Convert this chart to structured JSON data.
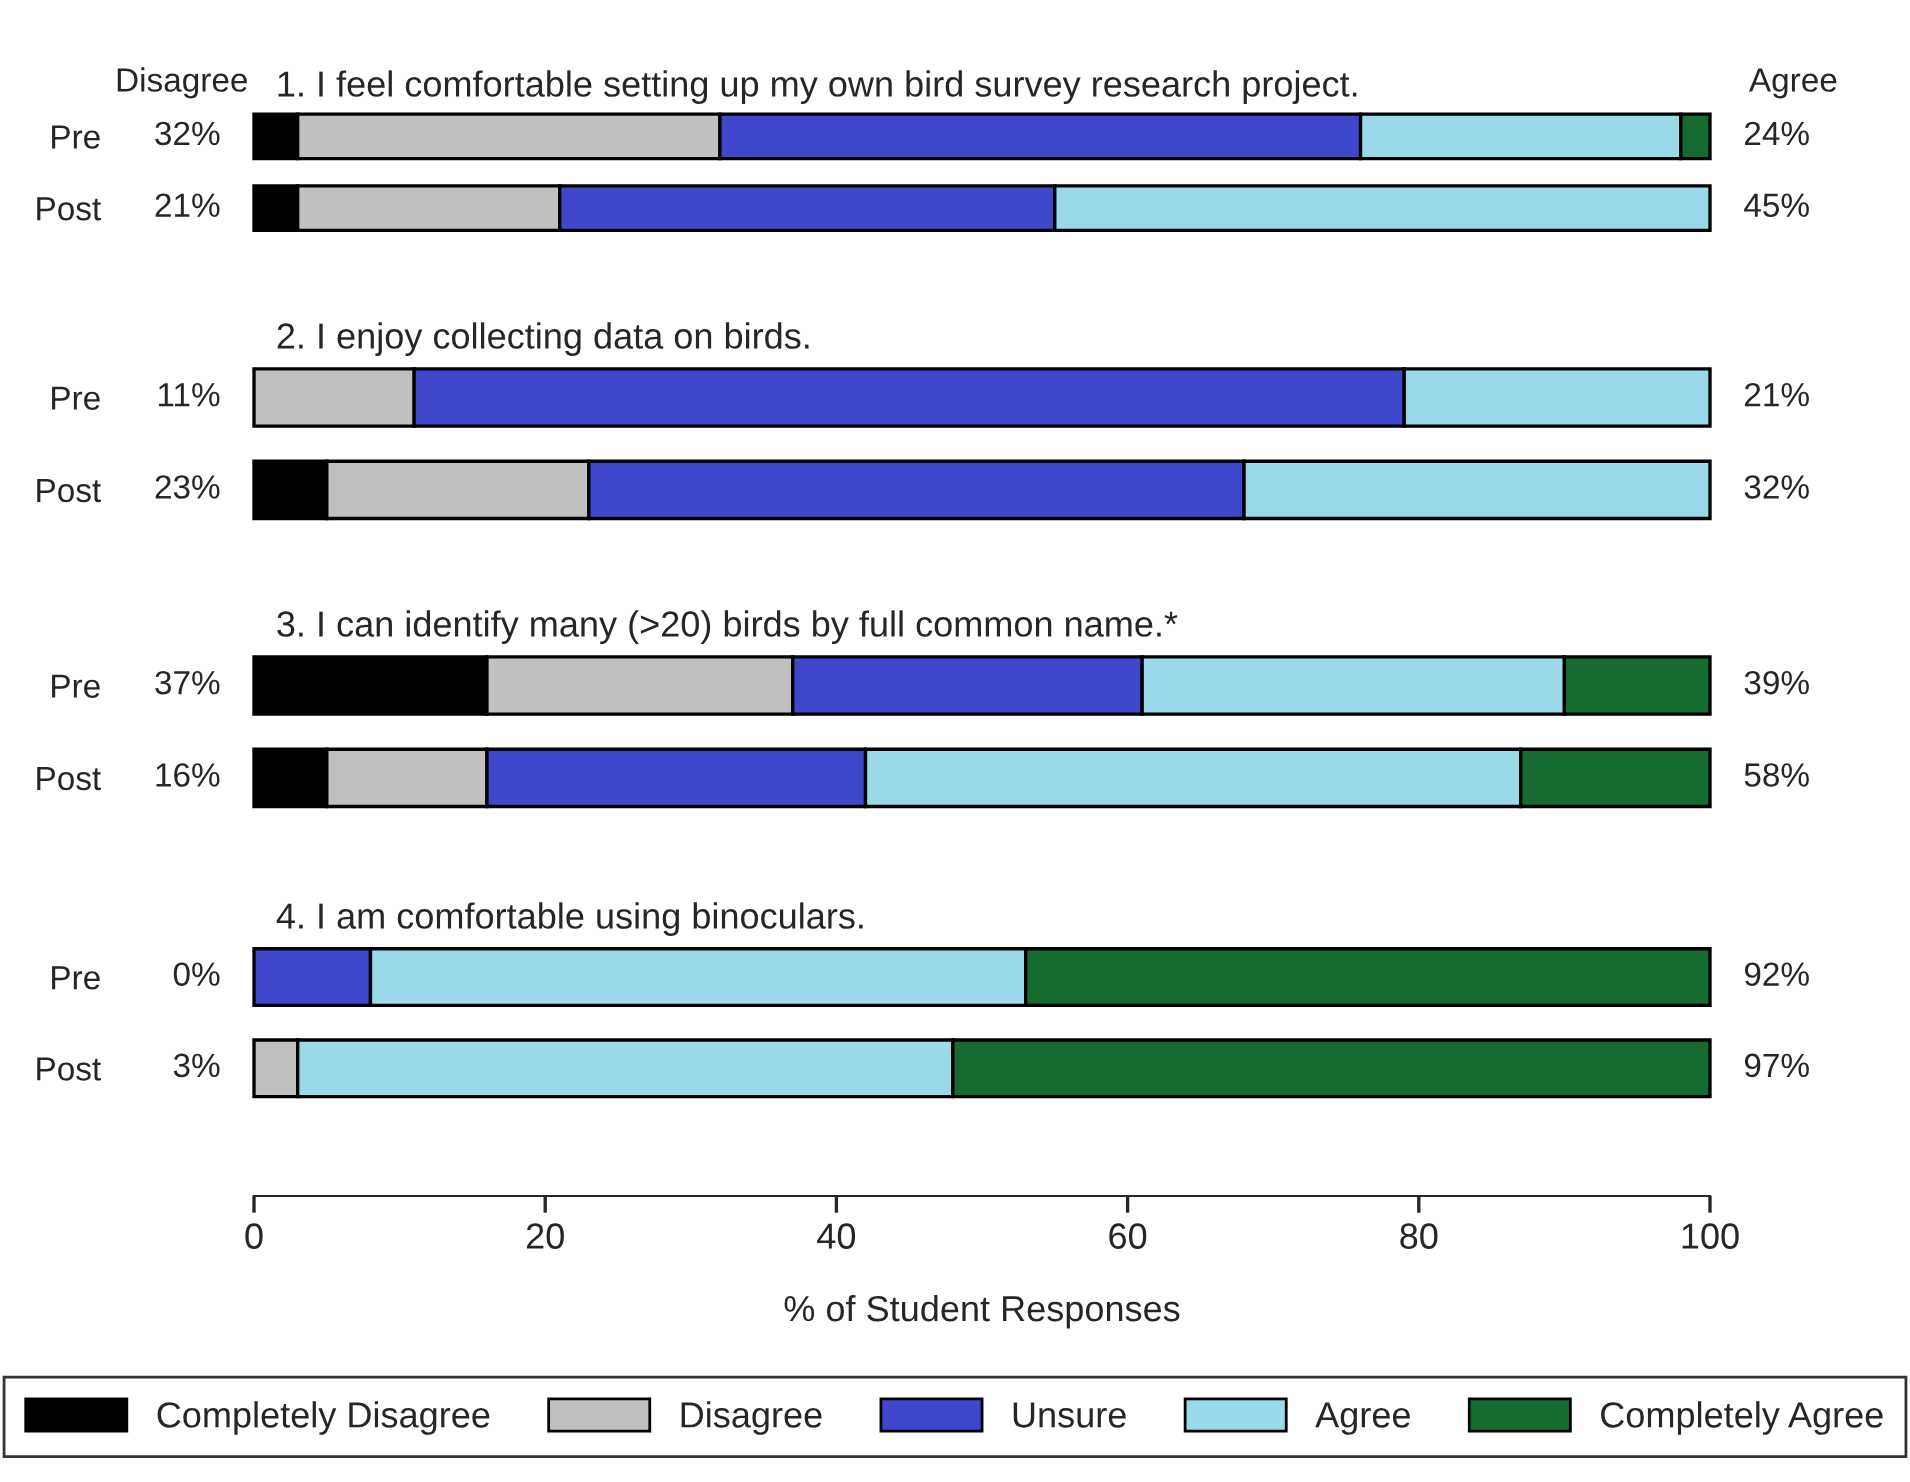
{
  "chart_data": [
    {
      "type": "bar",
      "orientation": "horizontal",
      "stacked": true,
      "title": "1. I feel comfortable setting up my own bird survey research project.",
      "categories": [
        "Pre",
        "Post"
      ],
      "xlim": [
        0,
        100
      ],
      "xticks": [
        0,
        20,
        40,
        60,
        80,
        100
      ],
      "tick_labels": "y",
      "legend": false,
      "series": [
        {
          "color": "#000000",
          "values": [
            3,
            3
          ]
        },
        {
          "color": "#c0c0c0",
          "values": [
            29,
            18
          ]
        },
        {
          "color": "#3f48cc",
          "values": [
            44,
            34
          ]
        },
        {
          "color": "#99d9ea",
          "values": [
            22,
            45
          ]
        },
        {
          "color": "#156b30",
          "values": [
            2,
            null
          ]
        }
      ],
      "annotations": [
        "Disagree",
        "Agree",
        "32%",
        "24%",
        "21%",
        "45%"
      ]
    },
    {
      "type": "bar",
      "orientation": "horizontal",
      "stacked": true,
      "title": "2. I enjoy collecting data on birds.",
      "categories": [
        "Pre",
        "Post"
      ],
      "xlim": [
        0,
        100
      ],
      "xticks": [
        0,
        20,
        40,
        60,
        80,
        100
      ],
      "tick_labels": "y",
      "legend": false,
      "series": [
        {
          "color": "#000000",
          "values": [
            null,
            5
          ]
        },
        {
          "color": "#c0c0c0",
          "values": [
            11,
            18
          ]
        },
        {
          "color": "#3f48cc",
          "values": [
            68,
            45
          ]
        },
        {
          "color": "#99d9ea",
          "values": [
            21,
            32
          ]
        }
      ],
      "annotations": [
        "11%",
        "21%",
        "23%",
        "32%"
      ]
    },
    {
      "type": "bar",
      "orientation": "horizontal",
      "stacked": true,
      "title": "3. I can identify many (>20) birds by full common name.*",
      "categories": [
        "Pre",
        "Post"
      ],
      "xlim": [
        0,
        100
      ],
      "xticks": [
        0,
        20,
        40,
        60,
        80,
        100
      ],
      "tick_labels": "y",
      "legend": false,
      "series": [
        {
          "color": "#000000",
          "values": [
            16,
            5
          ]
        },
        {
          "color": "#c0c0c0",
          "values": [
            21,
            11
          ]
        },
        {
          "color": "#3f48cc",
          "values": [
            24,
            26
          ]
        },
        {
          "color": "#99d9ea",
          "values": [
            29,
            45
          ]
        },
        {
          "color": "#156b30",
          "values": [
            10,
            13
          ]
        }
      ],
      "annotations": [
        "37%",
        "39%",
        "16%",
        "58%"
      ]
    },
    {
      "type": "bar",
      "orientation": "horizontal",
      "stacked": true,
      "title": "4. I am comfortable using binoculars.",
      "categories": [
        "Pre",
        "Post"
      ],
      "xlim": [
        0,
        100
      ],
      "xticks": [
        0,
        20,
        40,
        60,
        80,
        100
      ],
      "xlabel": "% of Student Responses",
      "legend": "bottom",
      "series": [
        {
          "name": "Completely Disagree",
          "color": "#000000",
          "values": [
            null,
            null
          ]
        },
        {
          "name": "Disagree",
          "color": "#c0c0c0",
          "values": [
            null,
            3
          ]
        },
        {
          "name": "Unsure",
          "color": "#3f48cc",
          "values": [
            8,
            null
          ]
        },
        {
          "name": "Agree",
          "color": "#99d9ea",
          "values": [
            45,
            45
          ]
        },
        {
          "name": "Completely Agree",
          "color": "#156b30",
          "values": [
            47,
            52
          ]
        }
      ],
      "annotations": [
        "0%",
        "92%",
        "3%",
        "97%"
      ]
    }
  ]
}
